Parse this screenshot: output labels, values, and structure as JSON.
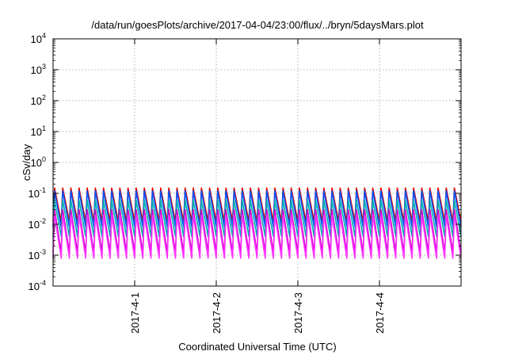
{
  "chart_data": {
    "type": "line",
    "title": "/data/run/goesPlots/archive/2017-04-04/23:00/flux/../bryn/5daysMars.plot",
    "xlabel": "Coordinated Universal Time (UTC)",
    "ylabel": "cSv/day",
    "y_scale": "log",
    "ylim": [
      0.0001,
      10000
    ],
    "xlim": [
      "2017-03-31T00:00",
      "2017-04-05T00:00"
    ],
    "grid": true,
    "legend": "none",
    "x_ticks": [
      {
        "value": "2017-04-01T00:00",
        "label": "2017-4-1"
      },
      {
        "value": "2017-04-02T00:00",
        "label": "2017-4-2"
      },
      {
        "value": "2017-04-03T00:00",
        "label": "2017-4-3"
      },
      {
        "value": "2017-04-04T00:00",
        "label": "2017-4-4"
      }
    ],
    "y_ticks": [
      {
        "value": 0.0001,
        "base": "10",
        "exp": "-4"
      },
      {
        "value": 0.001,
        "base": "10",
        "exp": "-3"
      },
      {
        "value": 0.01,
        "base": "10",
        "exp": "-2"
      },
      {
        "value": 0.1,
        "base": "10",
        "exp": "-1"
      },
      {
        "value": 1,
        "base": "10",
        "exp": "0"
      },
      {
        "value": 10,
        "base": "10",
        "exp": "1"
      },
      {
        "value": 100,
        "base": "10",
        "exp": "2"
      },
      {
        "value": 1000,
        "base": "10",
        "exp": "3"
      },
      {
        "value": 10000,
        "base": "10",
        "exp": "4"
      }
    ],
    "orbit_period_hours": 2.4,
    "series": [
      {
        "color": "#dd0000",
        "peak": 0.15,
        "trough": 0.012
      },
      {
        "color": "#0055ff",
        "peak": 0.12,
        "trough": 0.008
      },
      {
        "color": "#00b0b0",
        "peak": 0.06,
        "trough": 0.004
      },
      {
        "color": "#cc00cc",
        "peak": 0.03,
        "trough": 0.0012
      },
      {
        "color": "#ff33ff",
        "peak": 0.02,
        "trough": 0.0008
      }
    ]
  }
}
